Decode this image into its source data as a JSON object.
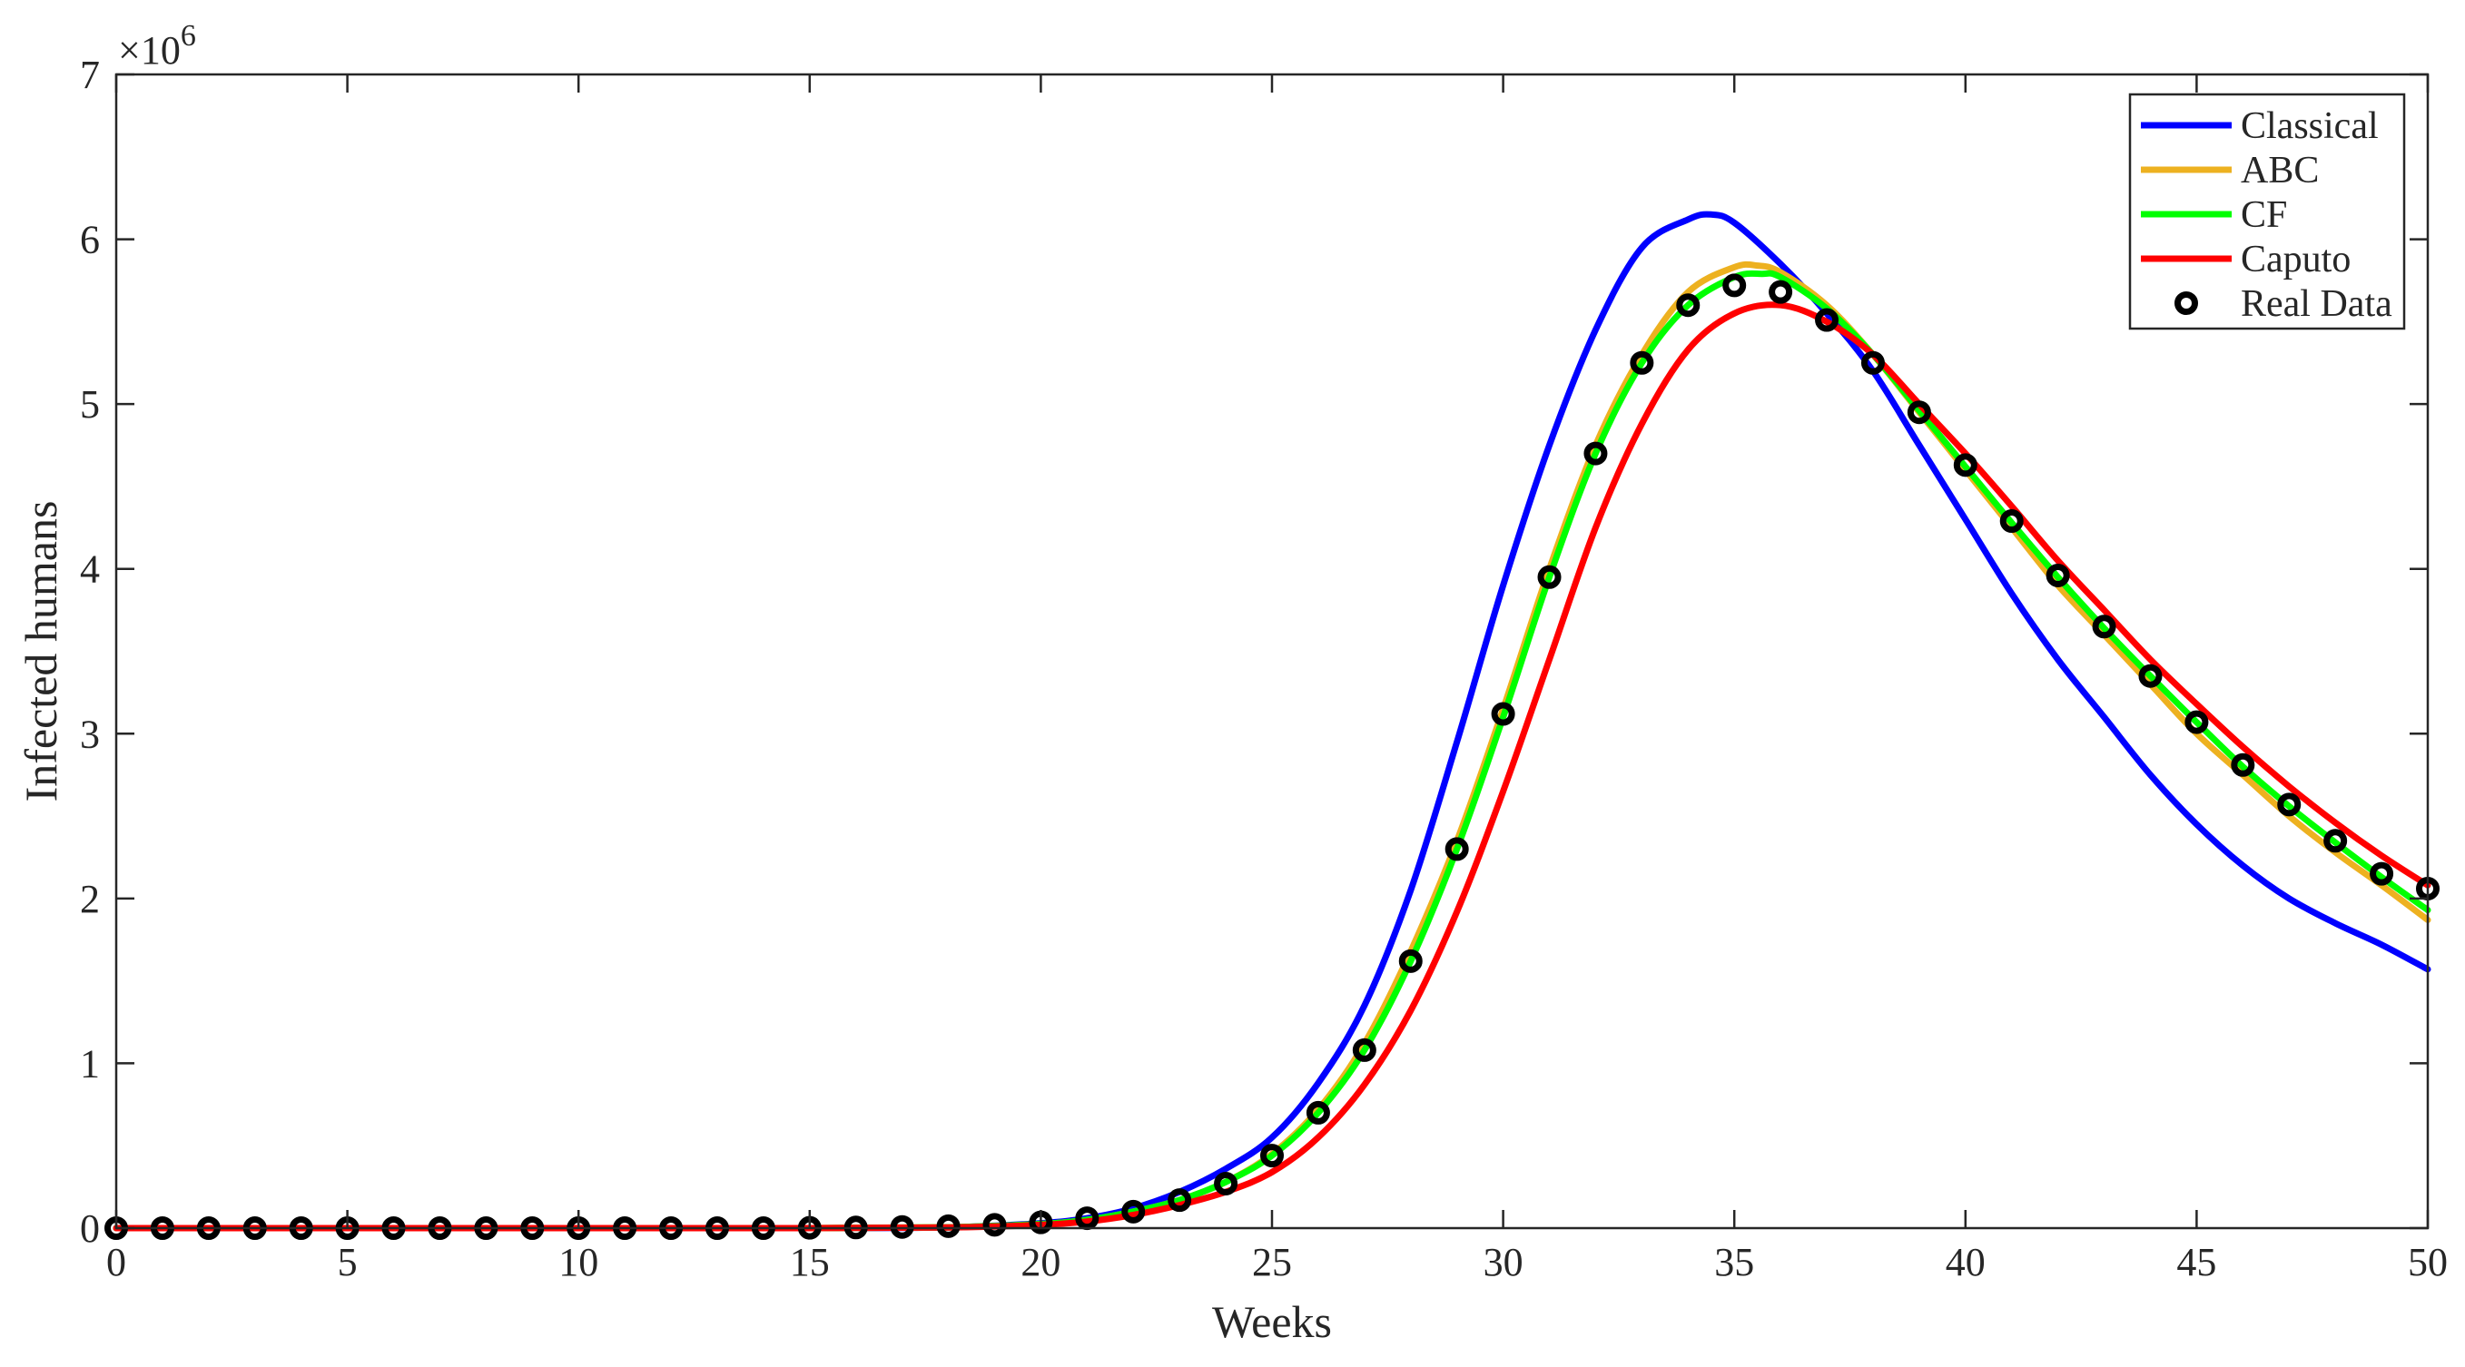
{
  "chart_data": {
    "type": "line",
    "xlabel": "Weeks",
    "ylabel": "Infected humans",
    "y_multiplier_base": "×10",
    "y_multiplier_exp": "6",
    "xlim": [
      0,
      50
    ],
    "ylim": [
      0,
      7
    ],
    "x_ticks": [
      0,
      5,
      10,
      15,
      20,
      25,
      30,
      35,
      40,
      45,
      50
    ],
    "y_ticks": [
      0,
      1,
      2,
      3,
      4,
      5,
      6,
      7
    ],
    "legend_position": "top-right",
    "series": [
      {
        "name": "Classical",
        "kind": "line",
        "color": "#0000ff",
        "points": [
          [
            0,
            0
          ],
          [
            5,
            0
          ],
          [
            10,
            0
          ],
          [
            15,
            0
          ],
          [
            18,
            0.005
          ],
          [
            20,
            0.03
          ],
          [
            21,
            0.06
          ],
          [
            22,
            0.12
          ],
          [
            23,
            0.22
          ],
          [
            24,
            0.36
          ],
          [
            25,
            0.55
          ],
          [
            26,
            0.88
          ],
          [
            27,
            1.35
          ],
          [
            28,
            2.05
          ],
          [
            29,
            2.95
          ],
          [
            30,
            3.9
          ],
          [
            31,
            4.75
          ],
          [
            32,
            5.45
          ],
          [
            33,
            5.95
          ],
          [
            34,
            6.12
          ],
          [
            34.5,
            6.15
          ],
          [
            35,
            6.1
          ],
          [
            36,
            5.85
          ],
          [
            37,
            5.55
          ],
          [
            38,
            5.2
          ],
          [
            39,
            4.75
          ],
          [
            40,
            4.3
          ],
          [
            41,
            3.85
          ],
          [
            42,
            3.45
          ],
          [
            43,
            3.1
          ],
          [
            44,
            2.75
          ],
          [
            45,
            2.45
          ],
          [
            46,
            2.2
          ],
          [
            47,
            2.0
          ],
          [
            48,
            1.85
          ],
          [
            49,
            1.72
          ],
          [
            50,
            1.57
          ]
        ]
      },
      {
        "name": "ABC",
        "kind": "line",
        "color": "#edb120",
        "points": [
          [
            0,
            0
          ],
          [
            5,
            0
          ],
          [
            10,
            0
          ],
          [
            15,
            0
          ],
          [
            18,
            0.005
          ],
          [
            20,
            0.025
          ],
          [
            21,
            0.05
          ],
          [
            22,
            0.1
          ],
          [
            23,
            0.17
          ],
          [
            24,
            0.28
          ],
          [
            25,
            0.45
          ],
          [
            26,
            0.72
          ],
          [
            27,
            1.12
          ],
          [
            28,
            1.68
          ],
          [
            29,
            2.35
          ],
          [
            30,
            3.15
          ],
          [
            31,
            4.0
          ],
          [
            32,
            4.75
          ],
          [
            33,
            5.3
          ],
          [
            34,
            5.68
          ],
          [
            35,
            5.83
          ],
          [
            35.5,
            5.84
          ],
          [
            36,
            5.8
          ],
          [
            37,
            5.6
          ],
          [
            38,
            5.3
          ],
          [
            39,
            4.95
          ],
          [
            40,
            4.6
          ],
          [
            41,
            4.25
          ],
          [
            42,
            3.9
          ],
          [
            43,
            3.6
          ],
          [
            44,
            3.3
          ],
          [
            45,
            3.0
          ],
          [
            46,
            2.75
          ],
          [
            47,
            2.5
          ],
          [
            48,
            2.28
          ],
          [
            49,
            2.08
          ],
          [
            50,
            1.87
          ]
        ]
      },
      {
        "name": "CF",
        "kind": "line",
        "color": "#00ff00",
        "points": [
          [
            0,
            0
          ],
          [
            5,
            0
          ],
          [
            10,
            0
          ],
          [
            15,
            0
          ],
          [
            18,
            0.005
          ],
          [
            20,
            0.025
          ],
          [
            21,
            0.05
          ],
          [
            22,
            0.1
          ],
          [
            23,
            0.17
          ],
          [
            24,
            0.28
          ],
          [
            25,
            0.44
          ],
          [
            26,
            0.7
          ],
          [
            27,
            1.08
          ],
          [
            28,
            1.62
          ],
          [
            29,
            2.3
          ],
          [
            30,
            3.1
          ],
          [
            31,
            3.95
          ],
          [
            32,
            4.7
          ],
          [
            33,
            5.25
          ],
          [
            34,
            5.6
          ],
          [
            35,
            5.77
          ],
          [
            35.6,
            5.79
          ],
          [
            36,
            5.77
          ],
          [
            37,
            5.58
          ],
          [
            38,
            5.3
          ],
          [
            39,
            4.96
          ],
          [
            40,
            4.62
          ],
          [
            41,
            4.28
          ],
          [
            42,
            3.95
          ],
          [
            43,
            3.64
          ],
          [
            44,
            3.35
          ],
          [
            45,
            3.07
          ],
          [
            46,
            2.8
          ],
          [
            47,
            2.56
          ],
          [
            48,
            2.34
          ],
          [
            49,
            2.13
          ],
          [
            50,
            1.93
          ]
        ]
      },
      {
        "name": "Caputo",
        "kind": "line",
        "color": "#ff0000",
        "points": [
          [
            0,
            0
          ],
          [
            5,
            0
          ],
          [
            10,
            0
          ],
          [
            15,
            0
          ],
          [
            18,
            0.004
          ],
          [
            20,
            0.02
          ],
          [
            21,
            0.04
          ],
          [
            22,
            0.08
          ],
          [
            23,
            0.14
          ],
          [
            24,
            0.22
          ],
          [
            25,
            0.34
          ],
          [
            26,
            0.55
          ],
          [
            27,
            0.87
          ],
          [
            28,
            1.32
          ],
          [
            29,
            1.92
          ],
          [
            30,
            2.65
          ],
          [
            31,
            3.45
          ],
          [
            32,
            4.25
          ],
          [
            33,
            4.88
          ],
          [
            34,
            5.33
          ],
          [
            35,
            5.55
          ],
          [
            36,
            5.6
          ],
          [
            37,
            5.5
          ],
          [
            38,
            5.3
          ],
          [
            39,
            5.0
          ],
          [
            40,
            4.7
          ],
          [
            41,
            4.38
          ],
          [
            42,
            4.05
          ],
          [
            43,
            3.75
          ],
          [
            44,
            3.45
          ],
          [
            45,
            3.18
          ],
          [
            46,
            2.92
          ],
          [
            47,
            2.68
          ],
          [
            48,
            2.46
          ],
          [
            49,
            2.26
          ],
          [
            50,
            2.08
          ]
        ]
      },
      {
        "name": "Real Data",
        "kind": "markers",
        "color": "#000000",
        "points": [
          [
            0,
            0
          ],
          [
            1,
            0
          ],
          [
            2,
            0
          ],
          [
            3,
            0
          ],
          [
            4,
            0
          ],
          [
            5,
            0
          ],
          [
            6,
            0
          ],
          [
            7,
            0
          ],
          [
            8,
            0
          ],
          [
            9,
            0
          ],
          [
            10,
            0
          ],
          [
            11,
            0
          ],
          [
            12,
            0
          ],
          [
            13,
            0
          ],
          [
            14,
            0
          ],
          [
            15,
            0.002
          ],
          [
            16,
            0.004
          ],
          [
            17,
            0.007
          ],
          [
            18,
            0.012
          ],
          [
            19,
            0.02
          ],
          [
            20,
            0.035
          ],
          [
            21,
            0.06
          ],
          [
            22,
            0.1
          ],
          [
            23,
            0.17
          ],
          [
            24,
            0.27
          ],
          [
            25,
            0.44
          ],
          [
            26,
            0.7
          ],
          [
            27,
            1.08
          ],
          [
            28,
            1.62
          ],
          [
            29,
            2.3
          ],
          [
            30,
            3.12
          ],
          [
            31,
            3.95
          ],
          [
            32,
            4.7
          ],
          [
            33,
            5.25
          ],
          [
            34,
            5.6
          ],
          [
            35,
            5.72
          ],
          [
            36,
            5.68
          ],
          [
            37,
            5.51
          ],
          [
            38,
            5.25
          ],
          [
            39,
            4.95
          ],
          [
            40,
            4.63
          ],
          [
            41,
            4.29
          ],
          [
            42,
            3.96
          ],
          [
            43,
            3.65
          ],
          [
            44,
            3.35
          ],
          [
            45,
            3.07
          ],
          [
            46,
            2.81
          ],
          [
            47,
            2.57
          ],
          [
            48,
            2.35
          ],
          [
            49,
            2.15
          ],
          [
            50,
            2.06
          ]
        ]
      }
    ]
  }
}
